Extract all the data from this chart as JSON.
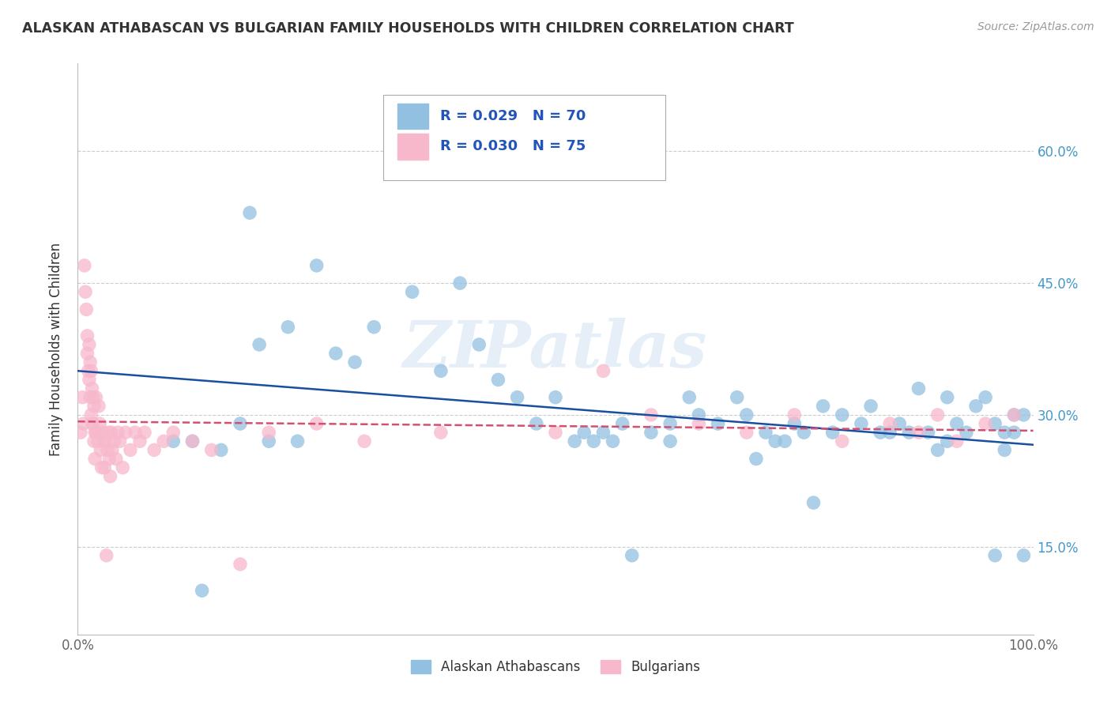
{
  "title": "ALASKAN ATHABASCAN VS BULGARIAN FAMILY HOUSEHOLDS WITH CHILDREN CORRELATION CHART",
  "source": "Source: ZipAtlas.com",
  "ylabel": "Family Households with Children",
  "yticks_labels": [
    "15.0%",
    "30.0%",
    "45.0%",
    "60.0%"
  ],
  "ytick_vals": [
    0.15,
    0.3,
    0.45,
    0.6
  ],
  "legend_bottom": [
    "Alaskan Athabascans",
    "Bulgarians"
  ],
  "r_athabascan": "0.029",
  "n_athabascan": "70",
  "r_bulgarian": "0.030",
  "n_bulgarian": "75",
  "color_athabascan": "#92c0e0",
  "color_bulgarian": "#f7b8cc",
  "trendline_athabascan": "#1a4fa0",
  "trendline_bulgarian": "#d45070",
  "watermark": "ZIPatlas",
  "xlim": [
    0.0,
    1.0
  ],
  "ylim": [
    0.05,
    0.7
  ],
  "athabascan_x": [
    0.13,
    0.18,
    0.19,
    0.22,
    0.25,
    0.27,
    0.29,
    0.31,
    0.35,
    0.38,
    0.4,
    0.42,
    0.44,
    0.46,
    0.48,
    0.5,
    0.52,
    0.54,
    0.55,
    0.57,
    0.6,
    0.62,
    0.64,
    0.65,
    0.67,
    0.69,
    0.7,
    0.72,
    0.73,
    0.75,
    0.76,
    0.78,
    0.79,
    0.8,
    0.82,
    0.83,
    0.84,
    0.85,
    0.86,
    0.87,
    0.88,
    0.89,
    0.9,
    0.91,
    0.91,
    0.92,
    0.93,
    0.94,
    0.95,
    0.96,
    0.97,
    0.97,
    0.98,
    0.98,
    0.99,
    0.99,
    0.1,
    0.12,
    0.15,
    0.17,
    0.2,
    0.23,
    0.53,
    0.56,
    0.58,
    0.62,
    0.71,
    0.74,
    0.77,
    0.96
  ],
  "athabascan_y": [
    0.1,
    0.53,
    0.38,
    0.4,
    0.47,
    0.37,
    0.36,
    0.4,
    0.44,
    0.35,
    0.45,
    0.38,
    0.34,
    0.32,
    0.29,
    0.32,
    0.27,
    0.27,
    0.28,
    0.29,
    0.28,
    0.29,
    0.32,
    0.3,
    0.29,
    0.32,
    0.3,
    0.28,
    0.27,
    0.29,
    0.28,
    0.31,
    0.28,
    0.3,
    0.29,
    0.31,
    0.28,
    0.28,
    0.29,
    0.28,
    0.33,
    0.28,
    0.26,
    0.32,
    0.27,
    0.29,
    0.28,
    0.31,
    0.32,
    0.29,
    0.28,
    0.26,
    0.3,
    0.28,
    0.3,
    0.14,
    0.27,
    0.27,
    0.26,
    0.29,
    0.27,
    0.27,
    0.28,
    0.27,
    0.14,
    0.27,
    0.25,
    0.27,
    0.2,
    0.14
  ],
  "bulgarian_x": [
    0.003,
    0.005,
    0.006,
    0.007,
    0.008,
    0.009,
    0.01,
    0.01,
    0.011,
    0.012,
    0.012,
    0.013,
    0.013,
    0.014,
    0.014,
    0.015,
    0.015,
    0.016,
    0.016,
    0.017,
    0.017,
    0.018,
    0.018,
    0.019,
    0.019,
    0.02,
    0.021,
    0.022,
    0.023,
    0.024,
    0.025,
    0.026,
    0.027,
    0.028,
    0.029,
    0.03,
    0.031,
    0.032,
    0.033,
    0.034,
    0.035,
    0.036,
    0.038,
    0.04,
    0.042,
    0.044,
    0.047,
    0.05,
    0.055,
    0.06,
    0.065,
    0.07,
    0.08,
    0.09,
    0.1,
    0.12,
    0.14,
    0.17,
    0.2,
    0.25,
    0.3,
    0.38,
    0.5,
    0.55,
    0.6,
    0.65,
    0.7,
    0.75,
    0.8,
    0.85,
    0.88,
    0.9,
    0.92,
    0.95,
    0.98
  ],
  "bulgarian_y": [
    0.28,
    0.32,
    0.29,
    0.47,
    0.44,
    0.42,
    0.39,
    0.37,
    0.35,
    0.38,
    0.34,
    0.32,
    0.36,
    0.35,
    0.3,
    0.33,
    0.29,
    0.32,
    0.29,
    0.27,
    0.31,
    0.28,
    0.25,
    0.28,
    0.32,
    0.28,
    0.27,
    0.31,
    0.29,
    0.26,
    0.24,
    0.28,
    0.27,
    0.24,
    0.27,
    0.14,
    0.26,
    0.28,
    0.25,
    0.23,
    0.28,
    0.26,
    0.27,
    0.25,
    0.28,
    0.27,
    0.24,
    0.28,
    0.26,
    0.28,
    0.27,
    0.28,
    0.26,
    0.27,
    0.28,
    0.27,
    0.26,
    0.13,
    0.28,
    0.29,
    0.27,
    0.28,
    0.28,
    0.35,
    0.3,
    0.29,
    0.28,
    0.3,
    0.27,
    0.29,
    0.28,
    0.3,
    0.27,
    0.29,
    0.3
  ]
}
